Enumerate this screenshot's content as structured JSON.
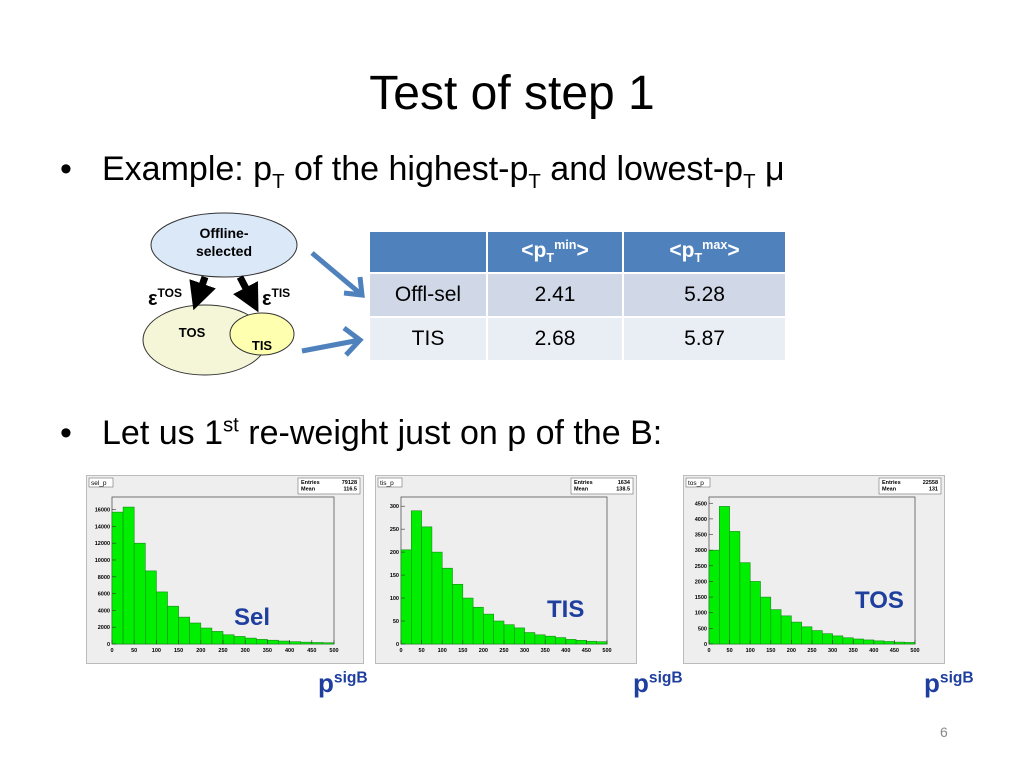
{
  "title": "Test of step 1",
  "bullets": [
    [
      "Example: p",
      "T",
      " of the highest-p",
      "T",
      " and lowest-p",
      "T",
      " μ"
    ],
    [
      "Let us 1",
      "st",
      " re-weight just on p of the B:"
    ]
  ],
  "diagram": {
    "nodes": [
      "Offline-selected",
      "TOS",
      "TIS"
    ],
    "edges": [
      [
        "ε",
        "TOS"
      ],
      [
        "ε",
        "TIS"
      ]
    ]
  },
  "table": {
    "header": [
      [
        "<p",
        "T",
        "min",
        ">"
      ],
      [
        "<p",
        "T",
        "max",
        ">"
      ]
    ],
    "rows": [
      [
        "Offl-sel",
        2.41,
        5.28
      ],
      [
        "TIS",
        2.68,
        5.87
      ]
    ]
  },
  "histograms": [
    {
      "type": "histogram",
      "title": "sel_p",
      "label": "Sel",
      "xlabel": [
        "p",
        "sigB"
      ],
      "stats": [
        {
          "label": "Entries",
          "value": 79128
        },
        {
          "label": "Mean",
          "value": 116.5
        }
      ],
      "bins": [
        0,
        25,
        50,
        75,
        100,
        125,
        150,
        175,
        200,
        225,
        250,
        275,
        300,
        325,
        350,
        375,
        400,
        425,
        450,
        475,
        500
      ],
      "values": [
        15700,
        16300,
        12000,
        8700,
        6200,
        4500,
        3200,
        2500,
        1900,
        1500,
        1100,
        900,
        700,
        550,
        450,
        350,
        280,
        220,
        180,
        150
      ],
      "color": "#00ee00",
      "xlim": [
        0,
        500
      ],
      "ylim": [
        0,
        17500
      ],
      "xticks": [
        0,
        50,
        100,
        150,
        200,
        250,
        300,
        350,
        400,
        450,
        500
      ],
      "yticks": [
        0,
        2000,
        4000,
        6000,
        8000,
        10000,
        12000,
        14000,
        16000
      ]
    },
    {
      "type": "histogram",
      "title": "tis_p",
      "label": "TIS",
      "xlabel": [
        "p",
        "sigB"
      ],
      "stats": [
        {
          "label": "Entries",
          "value": 1634
        },
        {
          "label": "Mean",
          "value": 138.5
        }
      ],
      "bins": [
        0,
        25,
        50,
        75,
        100,
        125,
        150,
        175,
        200,
        225,
        250,
        275,
        300,
        325,
        350,
        375,
        400,
        425,
        450,
        475,
        500
      ],
      "values": [
        205,
        290,
        255,
        200,
        165,
        130,
        100,
        80,
        65,
        50,
        42,
        35,
        25,
        20,
        17,
        14,
        10,
        8,
        6,
        5
      ],
      "color": "#00ee00",
      "xlim": [
        0,
        500
      ],
      "ylim": [
        0,
        320
      ],
      "xticks": [
        0,
        50,
        100,
        150,
        200,
        250,
        300,
        350,
        400,
        450,
        500
      ],
      "yticks": [
        0,
        50,
        100,
        150,
        200,
        250,
        300
      ]
    },
    {
      "type": "histogram",
      "title": "tos_p",
      "label": "TOS",
      "xlabel": [
        "p",
        "sigB"
      ],
      "stats": [
        {
          "label": "Entries",
          "value": 22558
        },
        {
          "label": "Mean",
          "value": 131
        }
      ],
      "bins": [
        0,
        25,
        50,
        75,
        100,
        125,
        150,
        175,
        200,
        225,
        250,
        275,
        300,
        325,
        350,
        375,
        400,
        425,
        450,
        475,
        500
      ],
      "values": [
        3000,
        4400,
        3600,
        2600,
        2000,
        1500,
        1100,
        900,
        700,
        550,
        430,
        330,
        260,
        200,
        160,
        130,
        100,
        80,
        60,
        50
      ],
      "color": "#00ee00",
      "xlim": [
        0,
        500
      ],
      "ylim": [
        0,
        4700
      ],
      "xticks": [
        0,
        50,
        100,
        150,
        200,
        250,
        300,
        350,
        400,
        450,
        500
      ],
      "yticks": [
        0,
        500,
        1000,
        1500,
        2000,
        2500,
        3000,
        3500,
        4000,
        4500
      ]
    }
  ],
  "page_number": 6
}
